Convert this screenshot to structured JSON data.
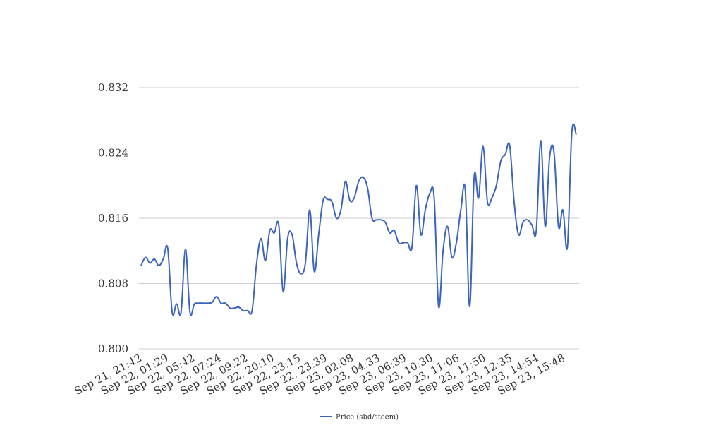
{
  "chart_data": {
    "type": "line",
    "title": "",
    "xlabel": "",
    "ylabel": "",
    "ylim": [
      0.8,
      0.832
    ],
    "y_ticks": [
      "0.800",
      "0.808",
      "0.816",
      "0.824",
      "0.832"
    ],
    "y_tick_values": [
      0.8,
      0.808,
      0.816,
      0.824,
      0.832
    ],
    "x_tick_labels": [
      "Sep 21, 21:42",
      "Sep 22, 01:29",
      "Sep 22, 05:42",
      "Sep 22, 07:24",
      "Sep 22, 09:22",
      "Sep 22, 20:10",
      "Sep 22, 23:15",
      "Sep 22, 23:39",
      "Sep 23, 02:08",
      "Sep 23, 04:33",
      "Sep 23, 06:39",
      "Sep 23, 10:30",
      "Sep 23, 11:06",
      "Sep 23, 11:50",
      "Sep 23, 12:35",
      "Sep 23, 14:54",
      "Sep 23, 15:48"
    ],
    "grid": true,
    "legend_position": "bottom-center",
    "series": [
      {
        "name": "Price (sbd/steem)",
        "color": "#3b64be",
        "values": [
          0.8102,
          0.8112,
          0.8105,
          0.811,
          0.8102,
          0.811,
          0.8123,
          0.8045,
          0.8055,
          0.8045,
          0.8122,
          0.8045,
          0.8055,
          0.8056,
          0.8056,
          0.8056,
          0.8057,
          0.8064,
          0.8056,
          0.8056,
          0.805,
          0.805,
          0.8051,
          0.8047,
          0.8047,
          0.8047,
          0.8104,
          0.8135,
          0.8108,
          0.8145,
          0.8142,
          0.8152,
          0.807,
          0.8135,
          0.814,
          0.8105,
          0.8092,
          0.8105,
          0.817,
          0.8095,
          0.814,
          0.8182,
          0.8183,
          0.818,
          0.816,
          0.817,
          0.8205,
          0.8182,
          0.8185,
          0.8205,
          0.821,
          0.8197,
          0.816,
          0.8158,
          0.8158,
          0.8155,
          0.8142,
          0.8145,
          0.813,
          0.813,
          0.813,
          0.8125,
          0.82,
          0.814,
          0.817,
          0.819,
          0.8185,
          0.8052,
          0.812,
          0.815,
          0.8112,
          0.813,
          0.817,
          0.8195,
          0.8052,
          0.821,
          0.8185,
          0.8248,
          0.818,
          0.8185,
          0.82,
          0.823,
          0.8238,
          0.8249,
          0.818,
          0.814,
          0.8155,
          0.8158,
          0.8152,
          0.8145,
          0.8255,
          0.815,
          0.8235,
          0.824,
          0.815,
          0.817,
          0.8125,
          0.8265,
          0.8262
        ]
      }
    ]
  }
}
